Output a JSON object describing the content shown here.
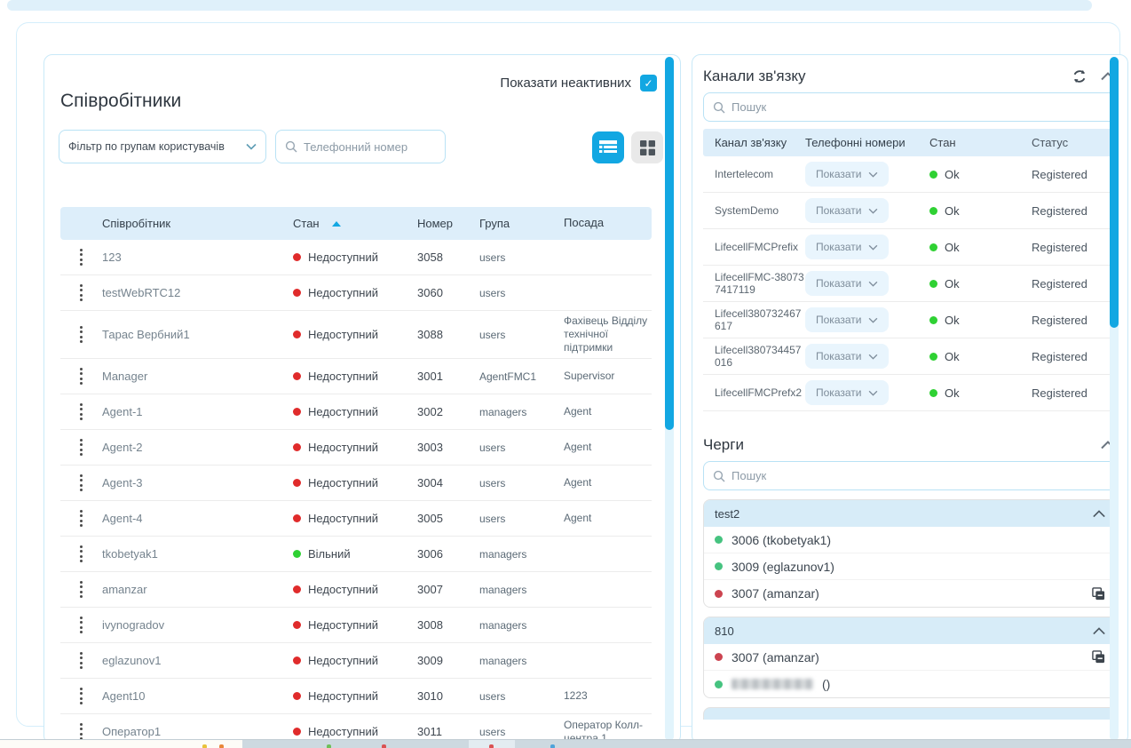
{
  "palette": {
    "accent": "#12a7e2",
    "header_bg": "#ddeefa",
    "queue_header_bg": "#d7ecf8",
    "status_red": "#e02b2b",
    "status_green": "#2fd133",
    "queue_green": "#46c380",
    "queue_red": "#cc4450"
  },
  "left_panel": {
    "show_inactive_label": "Показати неактивних",
    "show_inactive_checked": true,
    "title": "Співробітники",
    "filter_placeholder": "Фільтр по групам користувачів",
    "phone_placeholder": "Телефонний номер",
    "table": {
      "headers": {
        "employee": "Співробітник",
        "state": "Стан",
        "number": "Номер",
        "group": "Група",
        "position": "Посада"
      },
      "sort_column": "Стан",
      "rows": [
        {
          "name": "123",
          "state": "Недоступний",
          "free": false,
          "number": "3058",
          "group": "users",
          "position": ""
        },
        {
          "name": "testWebRTC12",
          "state": "Недоступний",
          "free": false,
          "number": "3060",
          "group": "users",
          "position": ""
        },
        {
          "name": "Тарас Вербний1",
          "state": "Недоступний",
          "free": false,
          "number": "3088",
          "group": "users",
          "position": "Фахівець Відділу технічної підтримки"
        },
        {
          "name": "Manager",
          "state": "Недоступний",
          "free": false,
          "number": "3001",
          "group": "AgentFMC1",
          "position": "Supervisor"
        },
        {
          "name": "Agent-1",
          "state": "Недоступний",
          "free": false,
          "number": "3002",
          "group": "managers",
          "position": "Agent"
        },
        {
          "name": "Agent-2",
          "state": "Недоступний",
          "free": false,
          "number": "3003",
          "group": "users",
          "position": "Agent"
        },
        {
          "name": "Agent-3",
          "state": "Недоступний",
          "free": false,
          "number": "3004",
          "group": "users",
          "position": "Agent"
        },
        {
          "name": "Agent-4",
          "state": "Недоступний",
          "free": false,
          "number": "3005",
          "group": "users",
          "position": "Agent"
        },
        {
          "name": "tkobetyak1",
          "state": "Вільний",
          "free": true,
          "number": "3006",
          "group": "managers",
          "position": ""
        },
        {
          "name": "amanzar",
          "state": "Недоступний",
          "free": false,
          "number": "3007",
          "group": "managers",
          "position": ""
        },
        {
          "name": "ivynogradov",
          "state": "Недоступний",
          "free": false,
          "number": "3008",
          "group": "managers",
          "position": ""
        },
        {
          "name": "eglazunov1",
          "state": "Недоступний",
          "free": false,
          "number": "3009",
          "group": "managers",
          "position": ""
        },
        {
          "name": "Agent10",
          "state": "Недоступний",
          "free": false,
          "number": "3010",
          "group": "users",
          "position": "1223"
        },
        {
          "name": "Оператор1",
          "state": "Недоступний",
          "free": false,
          "number": "3011",
          "group": "users",
          "position": "Оператор Колл-центра 1"
        }
      ]
    }
  },
  "right_panel": {
    "channels": {
      "title": "Канали зв'язку",
      "search_placeholder": "Пошук",
      "headers": {
        "channel": "Канал зв'язку",
        "numbers": "Телефонні номери",
        "state": "Стан",
        "status": "Статус"
      },
      "show_button_label": "Показати",
      "rows": [
        {
          "name": "Intertelecom",
          "state": "Ok",
          "status": "Registered"
        },
        {
          "name": "SystemDemo",
          "state": "Ok",
          "status": "Registered"
        },
        {
          "name": "LifecellFMCPrefix",
          "state": "Ok",
          "status": "Registered"
        },
        {
          "name": "LifecellFMC-380737417119",
          "state": "Ok",
          "status": "Registered"
        },
        {
          "name": "Lifecell380732467617",
          "state": "Ok",
          "status": "Registered"
        },
        {
          "name": "Lifecell380734457016",
          "state": "Ok",
          "status": "Registered"
        },
        {
          "name": "LifecellFMCPrefx2",
          "state": "Ok",
          "status": "Registered"
        }
      ]
    },
    "queues": {
      "title": "Черги",
      "search_placeholder": "Пошук",
      "groups": [
        {
          "name": "test2",
          "members": [
            {
              "text": "3006 (tkobetyak1)",
              "color": "green",
              "copy": false,
              "redacted": false
            },
            {
              "text": "3009 (eglazunov1)",
              "color": "green",
              "copy": false,
              "redacted": false
            },
            {
              "text": "3007 (amanzar)",
              "color": "red",
              "copy": true,
              "redacted": false
            }
          ]
        },
        {
          "name": "810",
          "members": [
            {
              "text": "3007 (amanzar)",
              "color": "red",
              "copy": true,
              "redacted": false
            },
            {
              "text": "()",
              "color": "green",
              "copy": false,
              "redacted": true
            }
          ]
        }
      ]
    }
  }
}
